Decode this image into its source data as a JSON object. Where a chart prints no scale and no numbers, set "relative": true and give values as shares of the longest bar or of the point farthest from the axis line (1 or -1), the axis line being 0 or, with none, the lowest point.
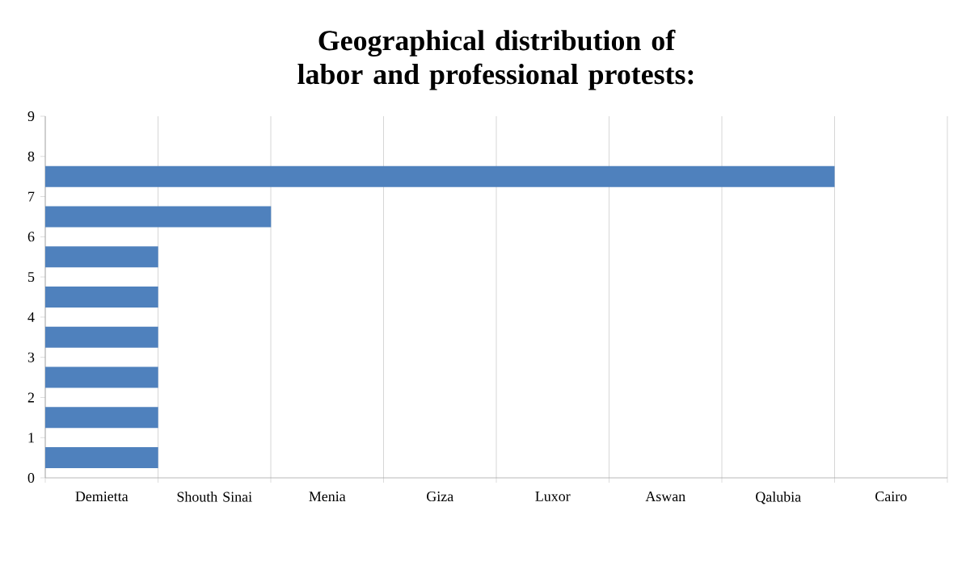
{
  "chart_data": {
    "type": "bar",
    "orientation": "horizontal",
    "relative": true,
    "title": "Geographical distribution of labor and professional protests:",
    "x": [
      0.5,
      1.5,
      2.5,
      3.5,
      4.5,
      5.5,
      6.5,
      7.5
    ],
    "values": [
      0.143,
      0.143,
      0.143,
      0.143,
      0.143,
      0.143,
      0.286,
      1
    ],
    "color": "#4f81bd",
    "annotations": [
      "Demietta",
      "Shouth Sinai",
      "Menia",
      "Giza",
      "Luxor",
      "Aswan",
      "Qalubia",
      "Cairo"
    ],
    "ylim": [
      0,
      9
    ],
    "yticks": [
      0,
      1,
      2,
      3,
      4,
      5,
      6,
      7,
      8,
      9
    ],
    "grid": "x"
  }
}
